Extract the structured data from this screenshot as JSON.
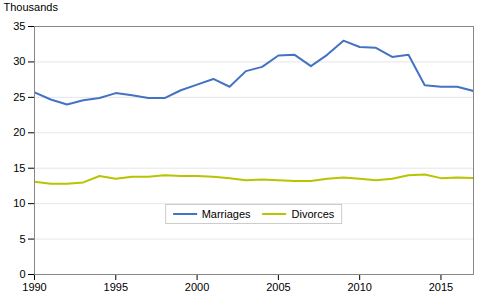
{
  "chart_data": {
    "type": "line",
    "x": [
      1990,
      1991,
      1992,
      1993,
      1994,
      1995,
      1996,
      1997,
      1998,
      1999,
      2000,
      2001,
      2002,
      2003,
      2004,
      2005,
      2006,
      2007,
      2008,
      2009,
      2010,
      2011,
      2012,
      2013,
      2014,
      2015,
      2016,
      2017
    ],
    "series": [
      {
        "name": "Marriages",
        "color": "#4472C4",
        "values": [
          25.7,
          24.7,
          24.0,
          24.6,
          24.9,
          25.6,
          25.3,
          24.9,
          24.9,
          26.0,
          26.8,
          27.6,
          26.5,
          28.7,
          29.3,
          30.9,
          31.0,
          29.4,
          31.0,
          33.0,
          32.1,
          32.0,
          30.7,
          31.0,
          26.7,
          26.5,
          26.5,
          25.9
        ]
      },
      {
        "name": "Divorces",
        "color": "#B8C400",
        "values": [
          13.1,
          12.8,
          12.8,
          13.0,
          13.9,
          13.5,
          13.8,
          13.8,
          14.0,
          13.9,
          13.9,
          13.8,
          13.6,
          13.3,
          13.4,
          13.3,
          13.2,
          13.2,
          13.5,
          13.7,
          13.5,
          13.3,
          13.5,
          14.0,
          14.1,
          13.6,
          13.7,
          13.6
        ]
      }
    ],
    "ylabel": "Thousands",
    "xlim": [
      1990,
      2017
    ],
    "xticks": [
      1990,
      1995,
      2000,
      2005,
      2010,
      2015
    ],
    "ylim": [
      0,
      35
    ],
    "yticks": [
      0,
      5,
      10,
      15,
      20,
      25,
      30,
      35
    ],
    "grid": true,
    "legend": "lower center"
  }
}
